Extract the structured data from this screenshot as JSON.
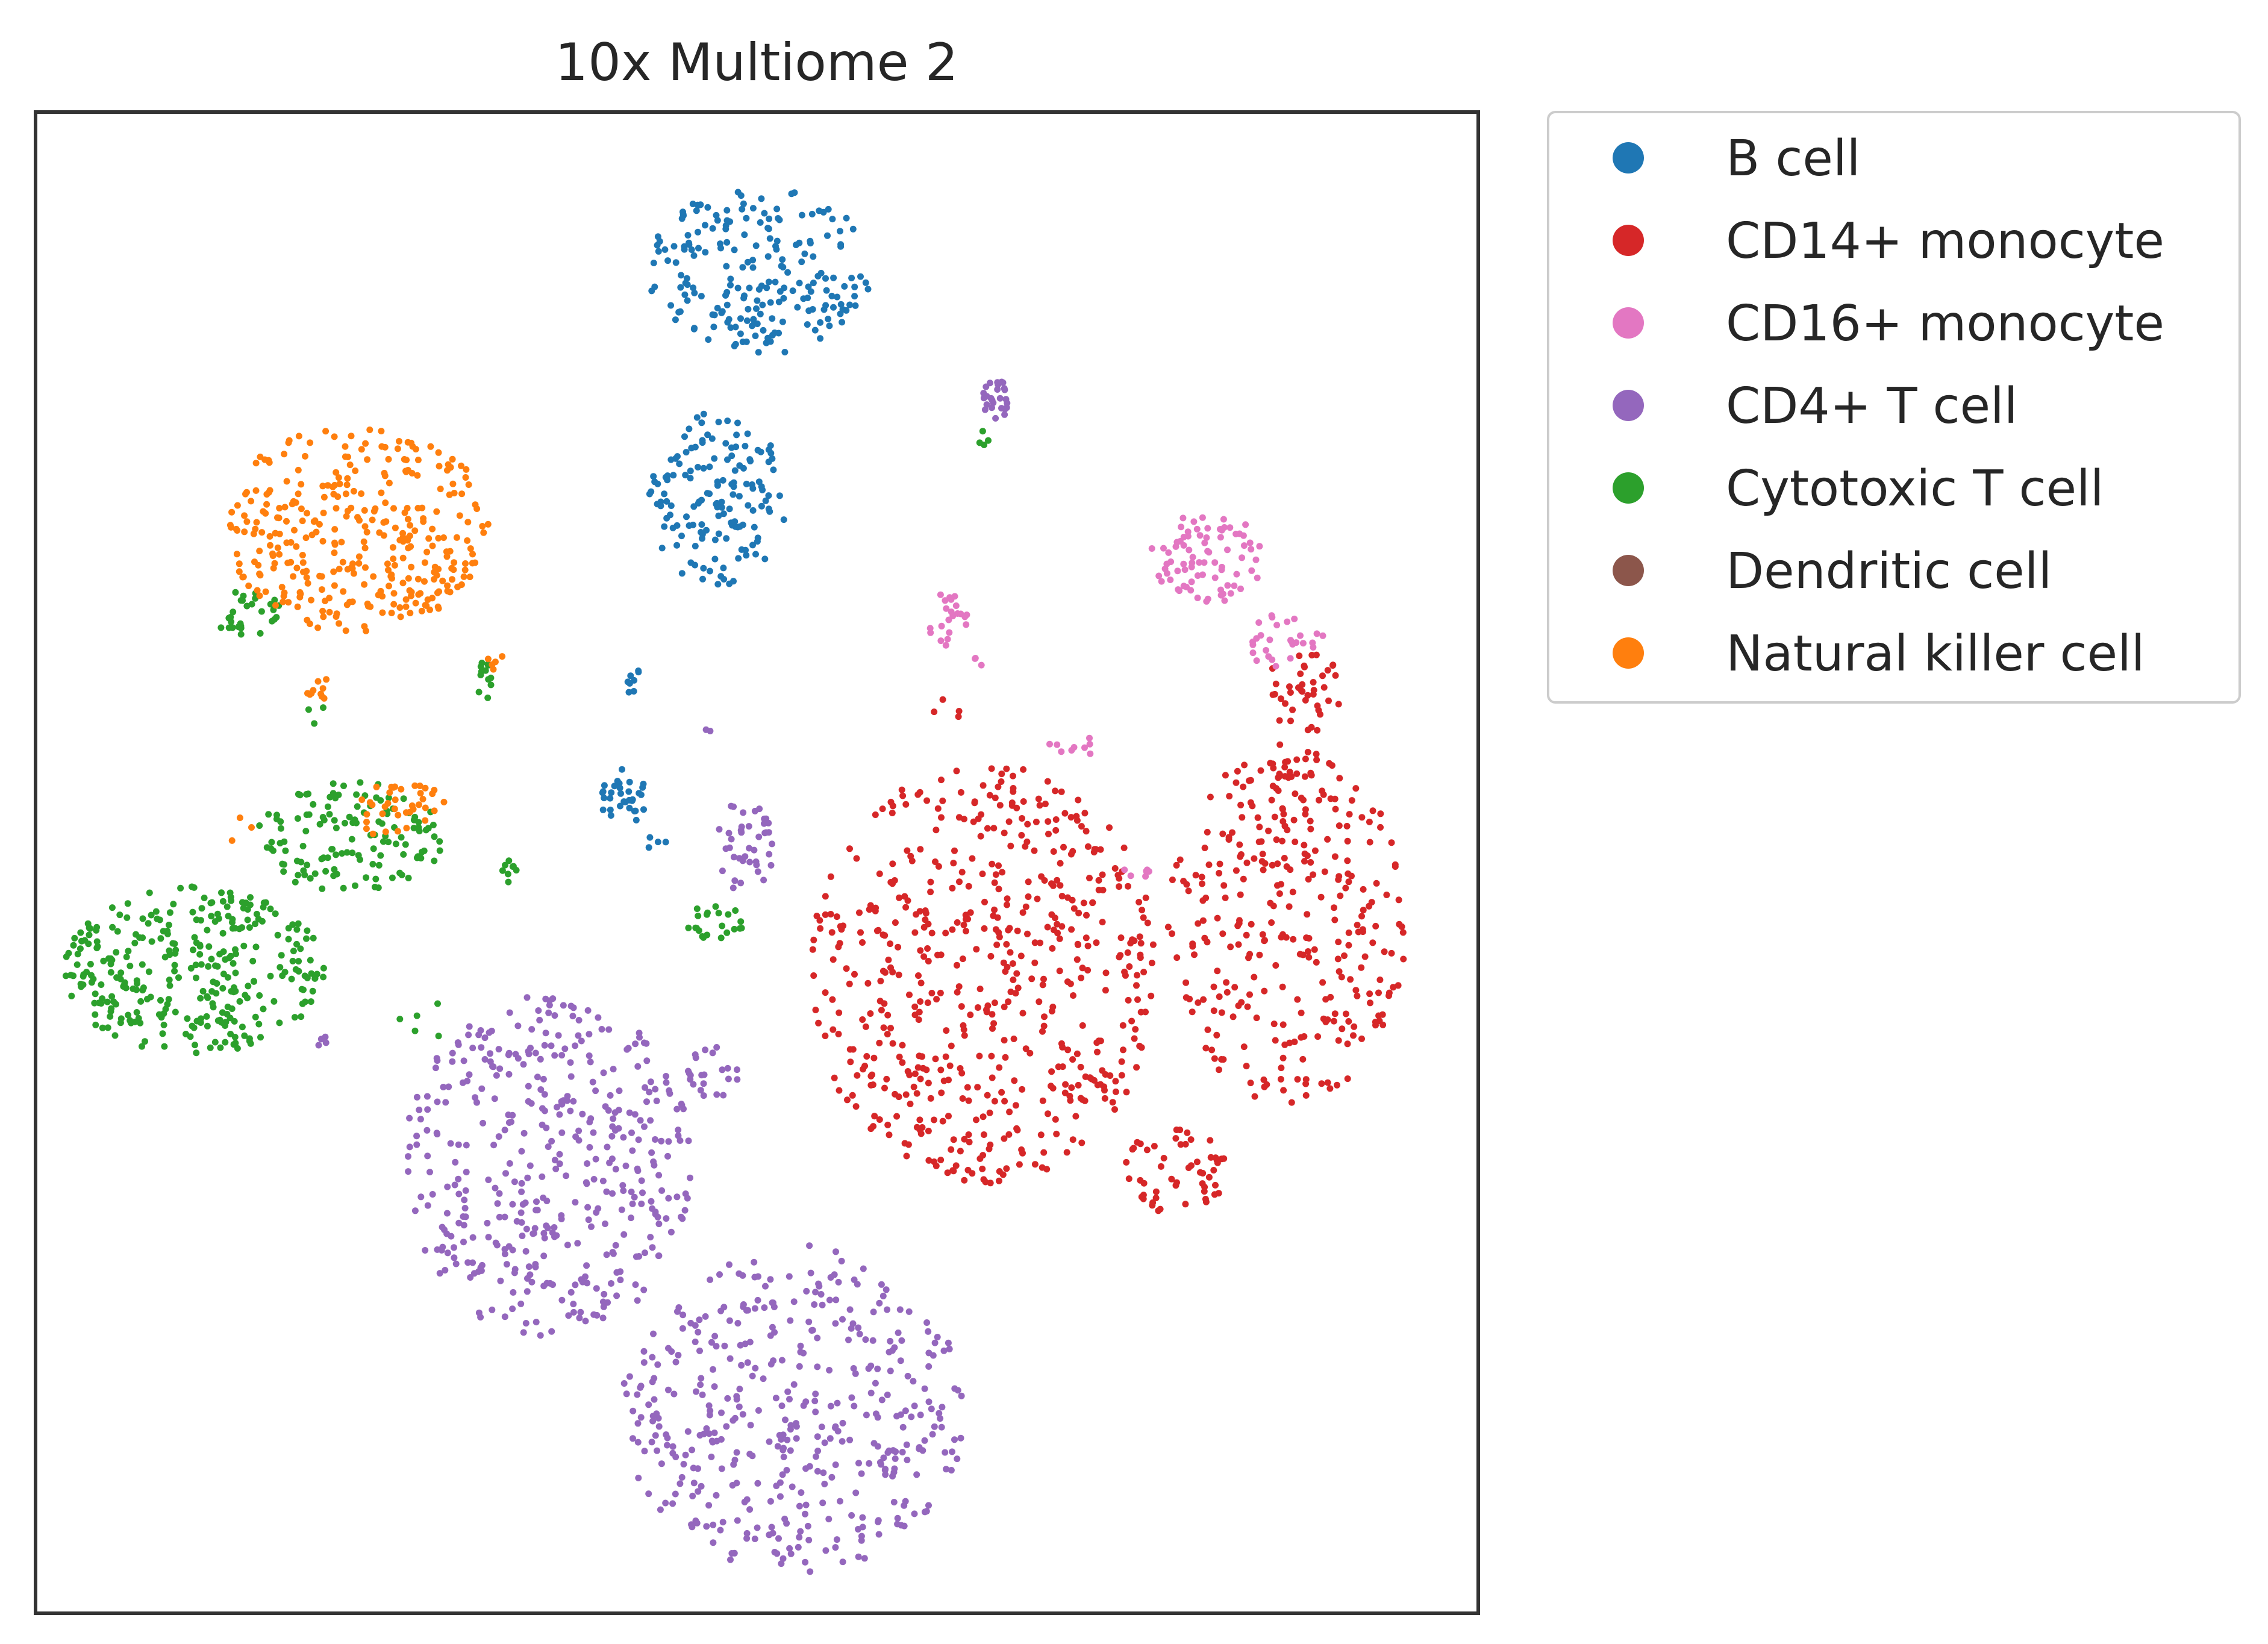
{
  "chart_data": {
    "type": "scatter",
    "title": "10x Multiome 2",
    "xlabel": "",
    "ylabel": "",
    "ticks": "none",
    "grid": false,
    "legend": {
      "placement": "outside-right"
    },
    "xlim": [
      0,
      100
    ],
    "ylim": [
      0,
      100
    ],
    "series": [
      {
        "name": "B cell",
        "color": "#1f77b4",
        "clusters": [
          {
            "cx": 50.2,
            "cy": 89.4,
            "rx": 7.8,
            "ry": 5.6,
            "n": 210
          },
          {
            "cx": 47.2,
            "cy": 74.2,
            "rx": 4.8,
            "ry": 5.8,
            "n": 150
          },
          {
            "cx": 40.8,
            "cy": 54.3,
            "rx": 1.6,
            "ry": 2.0,
            "n": 32
          },
          {
            "cx": 41.3,
            "cy": 62.8,
            "rx": 0.5,
            "ry": 1.6,
            "n": 8
          },
          {
            "cx": 43.0,
            "cy": 51.2,
            "rx": 1.2,
            "ry": 0.6,
            "n": 4
          }
        ]
      },
      {
        "name": "CD14+ monocyte",
        "color": "#d62728",
        "clusters": [
          {
            "cx": 65.8,
            "cy": 42.6,
            "rx": 12.2,
            "ry": 14.0,
            "n": 560
          },
          {
            "cx": 86.7,
            "cy": 45.9,
            "rx": 8.3,
            "ry": 12.0,
            "n": 300
          },
          {
            "cx": 79.0,
            "cy": 29.4,
            "rx": 3.6,
            "ry": 2.9,
            "n": 55
          },
          {
            "cx": 87.9,
            "cy": 61.3,
            "rx": 2.7,
            "ry": 2.9,
            "n": 40
          },
          {
            "cx": 86.9,
            "cy": 54.6,
            "rx": 1.4,
            "ry": 4.0,
            "n": 22
          },
          {
            "cx": 63.0,
            "cy": 60.3,
            "rx": 1.2,
            "ry": 1.0,
            "n": 4
          }
        ]
      },
      {
        "name": "CD16+ monocyte",
        "color": "#e377c2",
        "clusters": [
          {
            "cx": 81.2,
            "cy": 70.3,
            "rx": 4.0,
            "ry": 3.0,
            "n": 80
          },
          {
            "cx": 86.5,
            "cy": 64.7,
            "rx": 2.8,
            "ry": 2.0,
            "n": 28
          },
          {
            "cx": 63.3,
            "cy": 66.2,
            "rx": 1.5,
            "ry": 1.8,
            "n": 22
          },
          {
            "cx": 71.8,
            "cy": 57.7,
            "rx": 1.6,
            "ry": 1.0,
            "n": 9
          },
          {
            "cx": 76.6,
            "cy": 49.4,
            "rx": 1.3,
            "ry": 0.4,
            "n": 6
          },
          {
            "cx": 65.4,
            "cy": 63.5,
            "rx": 0.6,
            "ry": 0.6,
            "n": 3
          }
        ]
      },
      {
        "name": "CD4+ T cell",
        "color": "#9467bd",
        "clusters": [
          {
            "cx": 35.5,
            "cy": 29.8,
            "rx": 10.0,
            "ry": 11.5,
            "n": 420
          },
          {
            "cx": 52.5,
            "cy": 13.6,
            "rx": 12.0,
            "ry": 11.0,
            "n": 420
          },
          {
            "cx": 49.2,
            "cy": 51.0,
            "rx": 2.0,
            "ry": 3.2,
            "n": 40
          },
          {
            "cx": 47.0,
            "cy": 36.1,
            "rx": 1.8,
            "ry": 1.8,
            "n": 22
          },
          {
            "cx": 66.6,
            "cy": 80.8,
            "rx": 1.0,
            "ry": 1.4,
            "n": 26
          },
          {
            "cx": 19.5,
            "cy": 38.3,
            "rx": 0.8,
            "ry": 0.5,
            "n": 4
          },
          {
            "cx": 46.8,
            "cy": 59.0,
            "rx": 0.4,
            "ry": 0.3,
            "n": 2
          }
        ]
      },
      {
        "name": "Cytotoxic T cell",
        "color": "#2ca02c",
        "clusters": [
          {
            "cx": 11.0,
            "cy": 42.8,
            "rx": 9.0,
            "ry": 5.6,
            "n": 320
          },
          {
            "cx": 21.8,
            "cy": 51.7,
            "rx": 6.5,
            "ry": 3.7,
            "n": 130
          },
          {
            "cx": 14.7,
            "cy": 66.6,
            "rx": 2.3,
            "ry": 1.6,
            "n": 30
          },
          {
            "cx": 47.1,
            "cy": 46.0,
            "rx": 2.0,
            "ry": 1.2,
            "n": 22
          },
          {
            "cx": 31.1,
            "cy": 62.3,
            "rx": 0.5,
            "ry": 1.6,
            "n": 12
          },
          {
            "cx": 32.7,
            "cy": 49.6,
            "rx": 0.7,
            "ry": 1.3,
            "n": 8
          },
          {
            "cx": 65.8,
            "cy": 78.3,
            "rx": 0.6,
            "ry": 0.5,
            "n": 4
          },
          {
            "cx": 26.9,
            "cy": 39.6,
            "rx": 2.6,
            "ry": 1.6,
            "n": 5
          },
          {
            "cx": 19.3,
            "cy": 59.5,
            "rx": 1.0,
            "ry": 1.5,
            "n": 3
          }
        ]
      },
      {
        "name": "Dendritic cell",
        "color": "#8c564b",
        "clusters": []
      },
      {
        "name": "Natural killer cell",
        "color": "#ff7f0e",
        "clusters": [
          {
            "cx": 22.3,
            "cy": 72.3,
            "rx": 9.2,
            "ry": 7.0,
            "n": 340
          },
          {
            "cx": 25.3,
            "cy": 53.5,
            "rx": 3.2,
            "ry": 2.0,
            "n": 38
          },
          {
            "cx": 19.7,
            "cy": 61.3,
            "rx": 1.1,
            "ry": 1.2,
            "n": 10
          },
          {
            "cx": 31.8,
            "cy": 63.4,
            "rx": 0.6,
            "ry": 0.8,
            "n": 5
          },
          {
            "cx": 14.0,
            "cy": 52.1,
            "rx": 1.0,
            "ry": 1.0,
            "n": 3
          }
        ]
      }
    ]
  }
}
